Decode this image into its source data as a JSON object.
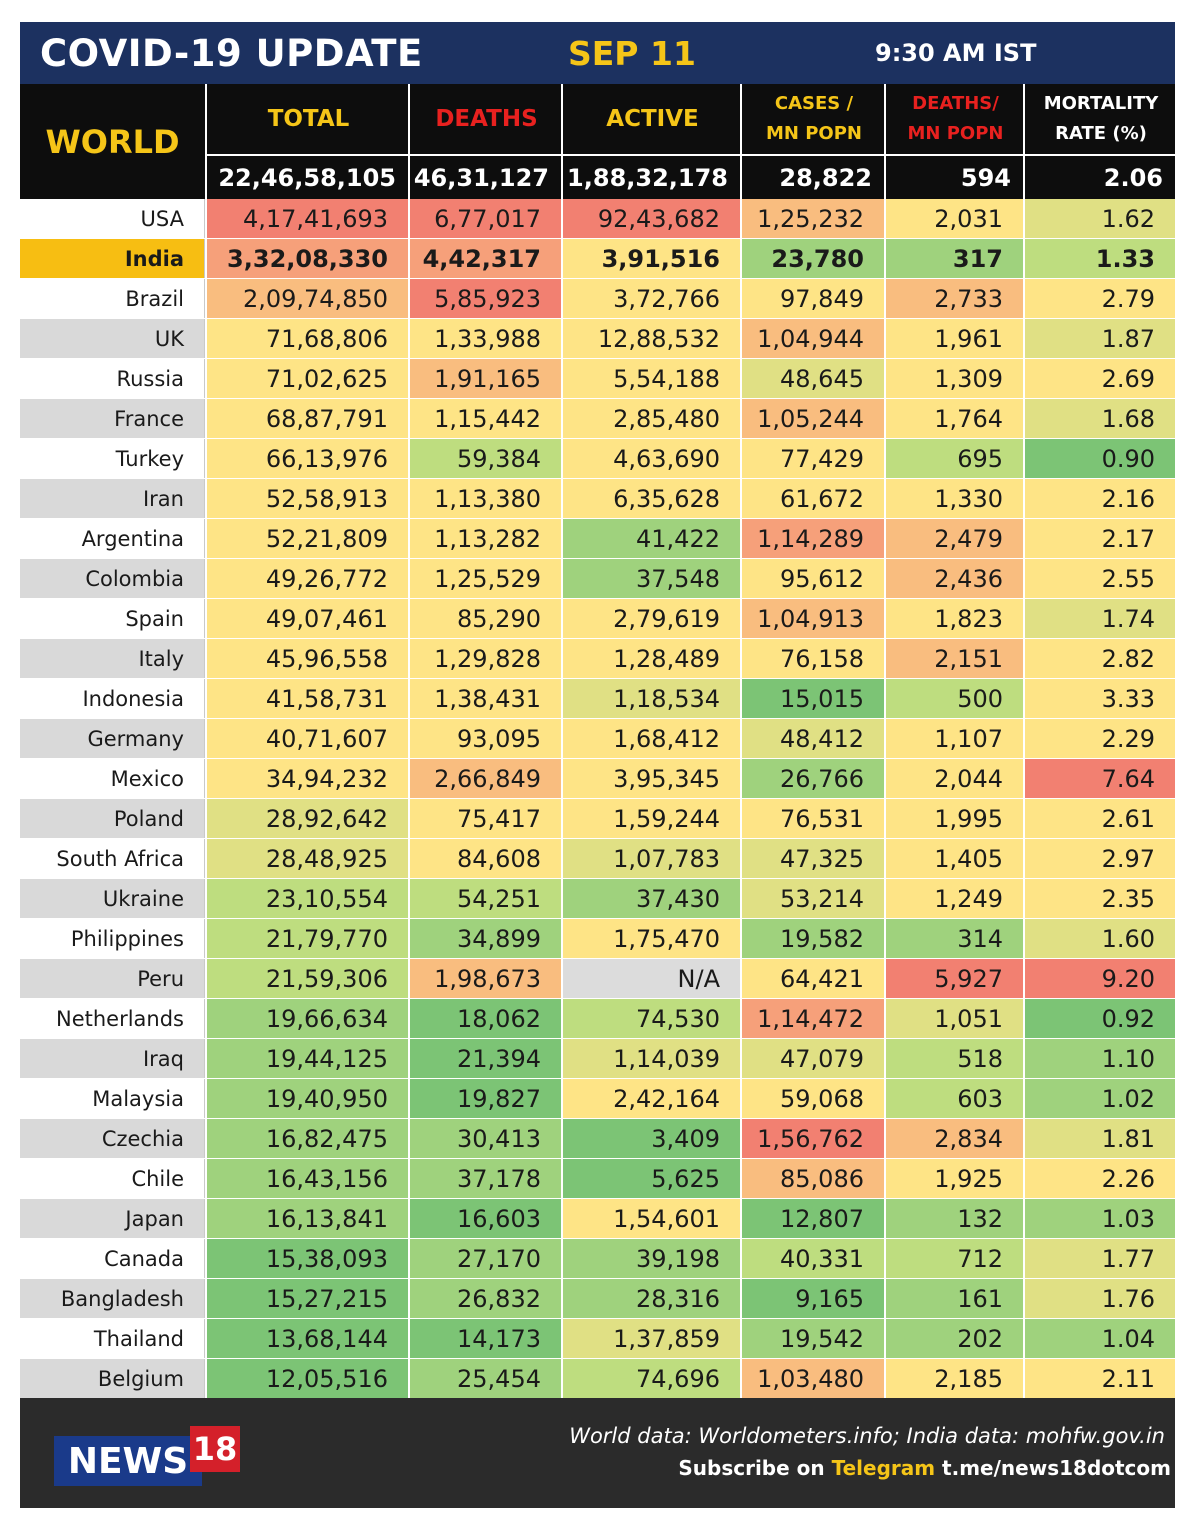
{
  "header": {
    "title": "COVID-19 UPDATE",
    "date": "SEP 11",
    "time": "9:30 AM IST"
  },
  "world": {
    "label": "WORLD",
    "columns": [
      {
        "label": "TOTAL",
        "value": "22,46,58,105"
      },
      {
        "label": "DEATHS",
        "value": "46,31,127"
      },
      {
        "label": "ACTIVE",
        "value": "1,88,32,178"
      },
      {
        "label_line1": "CASES /",
        "label_line2": "MN POPN",
        "value": "28,822"
      },
      {
        "label_line1": "DEATHS/",
        "label_line2": "MN POPN",
        "value": "594"
      },
      {
        "label_line1": "MORTALITY",
        "label_line2": "RATE (%)",
        "value": "2.06"
      }
    ]
  },
  "colors": {
    "highlight_row": "#f7be12",
    "name_odd": "#ffffff",
    "name_even": "#d9d9d9",
    "r1": "#f28071",
    "r2": "#f6a07a",
    "o": "#f9bd7f",
    "y": "#fee486",
    "yg": "#e0e084",
    "g1": "#bedd7f",
    "g2": "#9fd27d",
    "g3": "#7cc475",
    "na": "#dcdcdc"
  },
  "rows": [
    {
      "country": "USA",
      "total": "4,17,41,693",
      "deaths": "6,77,017",
      "active": "92,43,682",
      "cases_mn": "1,25,232",
      "deaths_mn": "2,031",
      "mortality": "1.62",
      "colors": [
        "r1",
        "r1",
        "r1",
        "o",
        "y",
        "yg"
      ]
    },
    {
      "country": "India",
      "highlight": true,
      "total": "3,32,08,330",
      "deaths": "4,42,317",
      "active": "3,91,516",
      "cases_mn": "23,780",
      "deaths_mn": "317",
      "mortality": "1.33",
      "colors": [
        "r2",
        "r2",
        "y",
        "g2",
        "g2",
        "g1"
      ]
    },
    {
      "country": "Brazil",
      "total": "2,09,74,850",
      "deaths": "5,85,923",
      "active": "3,72,766",
      "cases_mn": "97,849",
      "deaths_mn": "2,733",
      "mortality": "2.79",
      "colors": [
        "o",
        "r1",
        "y",
        "y",
        "o",
        "y"
      ]
    },
    {
      "country": "UK",
      "total": "71,68,806",
      "deaths": "1,33,988",
      "active": "12,88,532",
      "cases_mn": "1,04,944",
      "deaths_mn": "1,961",
      "mortality": "1.87",
      "colors": [
        "y",
        "y",
        "y",
        "o",
        "y",
        "yg"
      ]
    },
    {
      "country": "Russia",
      "total": "71,02,625",
      "deaths": "1,91,165",
      "active": "5,54,188",
      "cases_mn": "48,645",
      "deaths_mn": "1,309",
      "mortality": "2.69",
      "colors": [
        "y",
        "o",
        "y",
        "yg",
        "y",
        "y"
      ]
    },
    {
      "country": "France",
      "total": "68,87,791",
      "deaths": "1,15,442",
      "active": "2,85,480",
      "cases_mn": "1,05,244",
      "deaths_mn": "1,764",
      "mortality": "1.68",
      "colors": [
        "y",
        "y",
        "y",
        "o",
        "y",
        "yg"
      ]
    },
    {
      "country": "Turkey",
      "total": "66,13,976",
      "deaths": "59,384",
      "active": "4,63,690",
      "cases_mn": "77,429",
      "deaths_mn": "695",
      "mortality": "0.90",
      "colors": [
        "y",
        "g1",
        "y",
        "y",
        "g1",
        "g3"
      ]
    },
    {
      "country": "Iran",
      "total": "52,58,913",
      "deaths": "1,13,380",
      "active": "6,35,628",
      "cases_mn": "61,672",
      "deaths_mn": "1,330",
      "mortality": "2.16",
      "colors": [
        "y",
        "y",
        "y",
        "y",
        "y",
        "y"
      ]
    },
    {
      "country": "Argentina",
      "total": "52,21,809",
      "deaths": "1,13,282",
      "active": "41,422",
      "cases_mn": "1,14,289",
      "deaths_mn": "2,479",
      "mortality": "2.17",
      "colors": [
        "y",
        "y",
        "g2",
        "r2",
        "o",
        "y"
      ]
    },
    {
      "country": "Colombia",
      "total": "49,26,772",
      "deaths": "1,25,529",
      "active": "37,548",
      "cases_mn": "95,612",
      "deaths_mn": "2,436",
      "mortality": "2.55",
      "colors": [
        "y",
        "y",
        "g2",
        "y",
        "o",
        "y"
      ]
    },
    {
      "country": "Spain",
      "total": "49,07,461",
      "deaths": "85,290",
      "active": "2,79,619",
      "cases_mn": "1,04,913",
      "deaths_mn": "1,823",
      "mortality": "1.74",
      "colors": [
        "y",
        "y",
        "y",
        "o",
        "y",
        "yg"
      ]
    },
    {
      "country": "Italy",
      "total": "45,96,558",
      "deaths": "1,29,828",
      "active": "1,28,489",
      "cases_mn": "76,158",
      "deaths_mn": "2,151",
      "mortality": "2.82",
      "colors": [
        "y",
        "y",
        "y",
        "y",
        "o",
        "y"
      ]
    },
    {
      "country": "Indonesia",
      "total": "41,58,731",
      "deaths": "1,38,431",
      "active": "1,18,534",
      "cases_mn": "15,015",
      "deaths_mn": "500",
      "mortality": "3.33",
      "colors": [
        "y",
        "y",
        "yg",
        "g3",
        "g1",
        "y"
      ]
    },
    {
      "country": "Germany",
      "total": "40,71,607",
      "deaths": "93,095",
      "active": "1,68,412",
      "cases_mn": "48,412",
      "deaths_mn": "1,107",
      "mortality": "2.29",
      "colors": [
        "y",
        "y",
        "y",
        "yg",
        "y",
        "y"
      ]
    },
    {
      "country": "Mexico",
      "total": "34,94,232",
      "deaths": "2,66,849",
      "active": "3,95,345",
      "cases_mn": "26,766",
      "deaths_mn": "2,044",
      "mortality": "7.64",
      "colors": [
        "y",
        "o",
        "y",
        "g2",
        "y",
        "r1"
      ]
    },
    {
      "country": "Poland",
      "total": "28,92,642",
      "deaths": "75,417",
      "active": "1,59,244",
      "cases_mn": "76,531",
      "deaths_mn": "1,995",
      "mortality": "2.61",
      "colors": [
        "yg",
        "y",
        "y",
        "y",
        "y",
        "y"
      ]
    },
    {
      "country": "South Africa",
      "total": "28,48,925",
      "deaths": "84,608",
      "active": "1,07,783",
      "cases_mn": "47,325",
      "deaths_mn": "1,405",
      "mortality": "2.97",
      "colors": [
        "yg",
        "y",
        "yg",
        "yg",
        "y",
        "y"
      ]
    },
    {
      "country": "Ukraine",
      "total": "23,10,554",
      "deaths": "54,251",
      "active": "37,430",
      "cases_mn": "53,214",
      "deaths_mn": "1,249",
      "mortality": "2.35",
      "colors": [
        "g1",
        "g1",
        "g2",
        "yg",
        "y",
        "y"
      ]
    },
    {
      "country": "Philippines",
      "total": "21,79,770",
      "deaths": "34,899",
      "active": "1,75,470",
      "cases_mn": "19,582",
      "deaths_mn": "314",
      "mortality": "1.60",
      "colors": [
        "g1",
        "g2",
        "y",
        "g2",
        "g2",
        "yg"
      ]
    },
    {
      "country": "Peru",
      "total": "21,59,306",
      "deaths": "1,98,673",
      "active": "N/A",
      "cases_mn": "64,421",
      "deaths_mn": "5,927",
      "mortality": "9.20",
      "colors": [
        "g1",
        "o",
        "na",
        "y",
        "r1",
        "r1"
      ]
    },
    {
      "country": "Netherlands",
      "total": "19,66,634",
      "deaths": "18,062",
      "active": "74,530",
      "cases_mn": "1,14,472",
      "deaths_mn": "1,051",
      "mortality": "0.92",
      "colors": [
        "g2",
        "g3",
        "g1",
        "r2",
        "yg",
        "g3"
      ]
    },
    {
      "country": "Iraq",
      "total": "19,44,125",
      "deaths": "21,394",
      "active": "1,14,039",
      "cases_mn": "47,079",
      "deaths_mn": "518",
      "mortality": "1.10",
      "colors": [
        "g2",
        "g3",
        "yg",
        "yg",
        "g1",
        "g2"
      ]
    },
    {
      "country": "Malaysia",
      "total": "19,40,950",
      "deaths": "19,827",
      "active": "2,42,164",
      "cases_mn": "59,068",
      "deaths_mn": "603",
      "mortality": "1.02",
      "colors": [
        "g2",
        "g3",
        "y",
        "y",
        "g1",
        "g2"
      ]
    },
    {
      "country": "Czechia",
      "total": "16,82,475",
      "deaths": "30,413",
      "active": "3,409",
      "cases_mn": "1,56,762",
      "deaths_mn": "2,834",
      "mortality": "1.81",
      "colors": [
        "g2",
        "g2",
        "g3",
        "r1",
        "o",
        "yg"
      ]
    },
    {
      "country": "Chile",
      "total": "16,43,156",
      "deaths": "37,178",
      "active": "5,625",
      "cases_mn": "85,086",
      "deaths_mn": "1,925",
      "mortality": "2.26",
      "colors": [
        "g2",
        "g2",
        "g3",
        "o",
        "y",
        "y"
      ]
    },
    {
      "country": "Japan",
      "total": "16,13,841",
      "deaths": "16,603",
      "active": "1,54,601",
      "cases_mn": "12,807",
      "deaths_mn": "132",
      "mortality": "1.03",
      "colors": [
        "g2",
        "g3",
        "y",
        "g3",
        "g2",
        "g2"
      ]
    },
    {
      "country": "Canada",
      "total": "15,38,093",
      "deaths": "27,170",
      "active": "39,198",
      "cases_mn": "40,331",
      "deaths_mn": "712",
      "mortality": "1.77",
      "colors": [
        "g3",
        "g2",
        "g2",
        "g1",
        "g1",
        "yg"
      ]
    },
    {
      "country": "Bangladesh",
      "total": "15,27,215",
      "deaths": "26,832",
      "active": "28,316",
      "cases_mn": "9,165",
      "deaths_mn": "161",
      "mortality": "1.76",
      "colors": [
        "g3",
        "g2",
        "g2",
        "g3",
        "g2",
        "yg"
      ]
    },
    {
      "country": "Thailand",
      "total": "13,68,144",
      "deaths": "14,173",
      "active": "1,37,859",
      "cases_mn": "19,542",
      "deaths_mn": "202",
      "mortality": "1.04",
      "colors": [
        "g3",
        "g3",
        "yg",
        "g2",
        "g2",
        "g2"
      ]
    },
    {
      "country": "Belgium",
      "total": "12,05,516",
      "deaths": "25,454",
      "active": "74,696",
      "cases_mn": "1,03,480",
      "deaths_mn": "2,185",
      "mortality": "2.11",
      "colors": [
        "g3",
        "g2",
        "g1",
        "o",
        "y",
        "y"
      ]
    }
  ],
  "footer": {
    "logo_news": "NEWS",
    "logo_num": "18",
    "source": "World data: Worldometers.info; India data: mohfw.gov.in",
    "subscribe_prefix": "Subscribe on ",
    "subscribe_platform": "Telegram",
    "subscribe_link": " t.me/news18dotcom"
  }
}
